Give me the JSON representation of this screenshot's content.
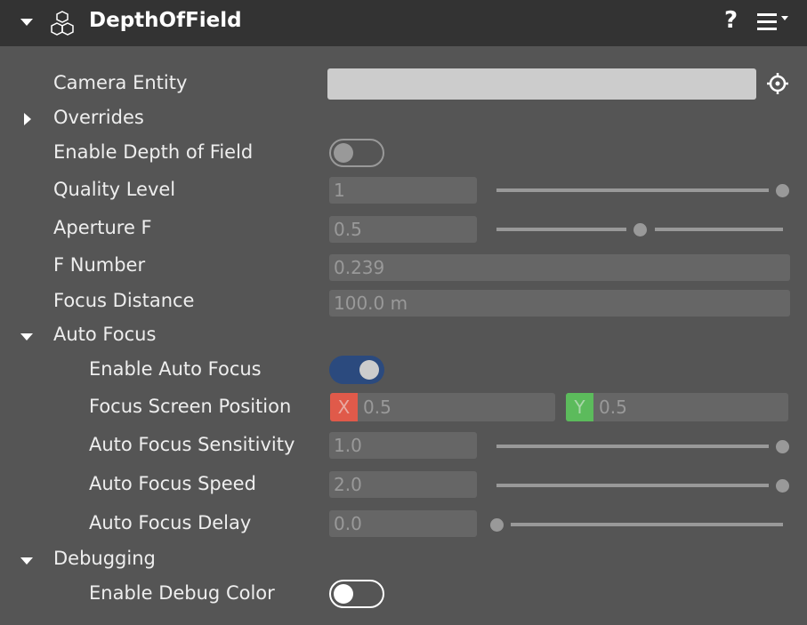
{
  "header": {
    "title": "DepthOfField",
    "help_icon": "?",
    "menu_icon": "hamburger-menu-icon",
    "component_icon": "cubes-icon"
  },
  "rows": {
    "camera_entity": {
      "label": "Camera Entity",
      "value": ""
    },
    "overrides": {
      "label": "Overrides",
      "expanded": false
    },
    "enable_dof": {
      "label": "Enable Depth of Field",
      "on": false
    },
    "quality_level": {
      "label": "Quality Level",
      "value": "1",
      "slider": 1.0
    },
    "aperture_f": {
      "label": "Aperture F",
      "value": "0.5",
      "slider": 0.5
    },
    "f_number": {
      "label": "F Number",
      "value": "0.239"
    },
    "focus_distance": {
      "label": "Focus Distance",
      "value": "100.0 m"
    },
    "auto_focus": {
      "label": "Auto Focus",
      "expanded": true
    },
    "enable_auto_focus": {
      "label": "Enable Auto Focus",
      "on": true
    },
    "focus_screen_position": {
      "label": "Focus Screen Position",
      "x_label": "X",
      "x": "0.5",
      "y_label": "Y",
      "y": "0.5"
    },
    "af_sensitivity": {
      "label": "Auto Focus Sensitivity",
      "value": "1.0",
      "slider": 1.0
    },
    "af_speed": {
      "label": "Auto Focus Speed",
      "value": "2.0",
      "slider": 1.0
    },
    "af_delay": {
      "label": "Auto Focus Delay",
      "value": "0.0",
      "slider": 0.0
    },
    "debugging": {
      "label": "Debugging",
      "expanded": true
    },
    "enable_debug_color": {
      "label": "Enable Debug Color",
      "on": false
    }
  },
  "colors": {
    "toggle_on": "#2b4a7e",
    "x_axis": "#e05a4a",
    "y_axis": "#5cbb5c"
  }
}
